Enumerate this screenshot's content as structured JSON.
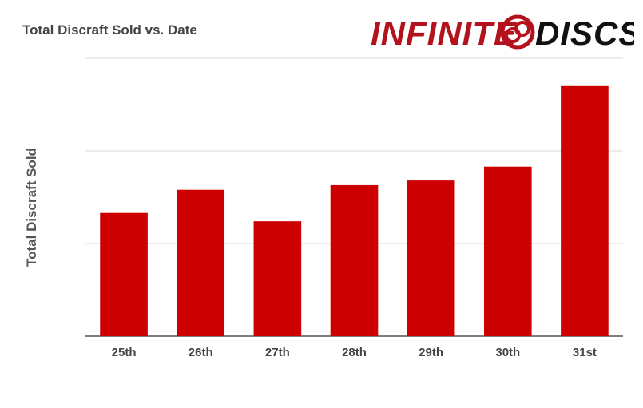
{
  "logo": {
    "text_left": "INFINITE",
    "text_right": "DISCS",
    "color": "#b3111b",
    "icon": "disc-logo-icon"
  },
  "chart_data": {
    "type": "bar",
    "title": "Total Discraft Sold vs. Date",
    "xlabel": "",
    "ylabel": "Total Discraft Sold",
    "categories": [
      "25th",
      "26th",
      "27th",
      "28th",
      "29th",
      "30th",
      "31st"
    ],
    "values": [
      133,
      158,
      124,
      163,
      168,
      183,
      270
    ],
    "ylim": [
      0,
      300
    ],
    "y_ticks_labeled": false,
    "grid": true,
    "bar_color": "#cc0000",
    "legend": "none"
  }
}
